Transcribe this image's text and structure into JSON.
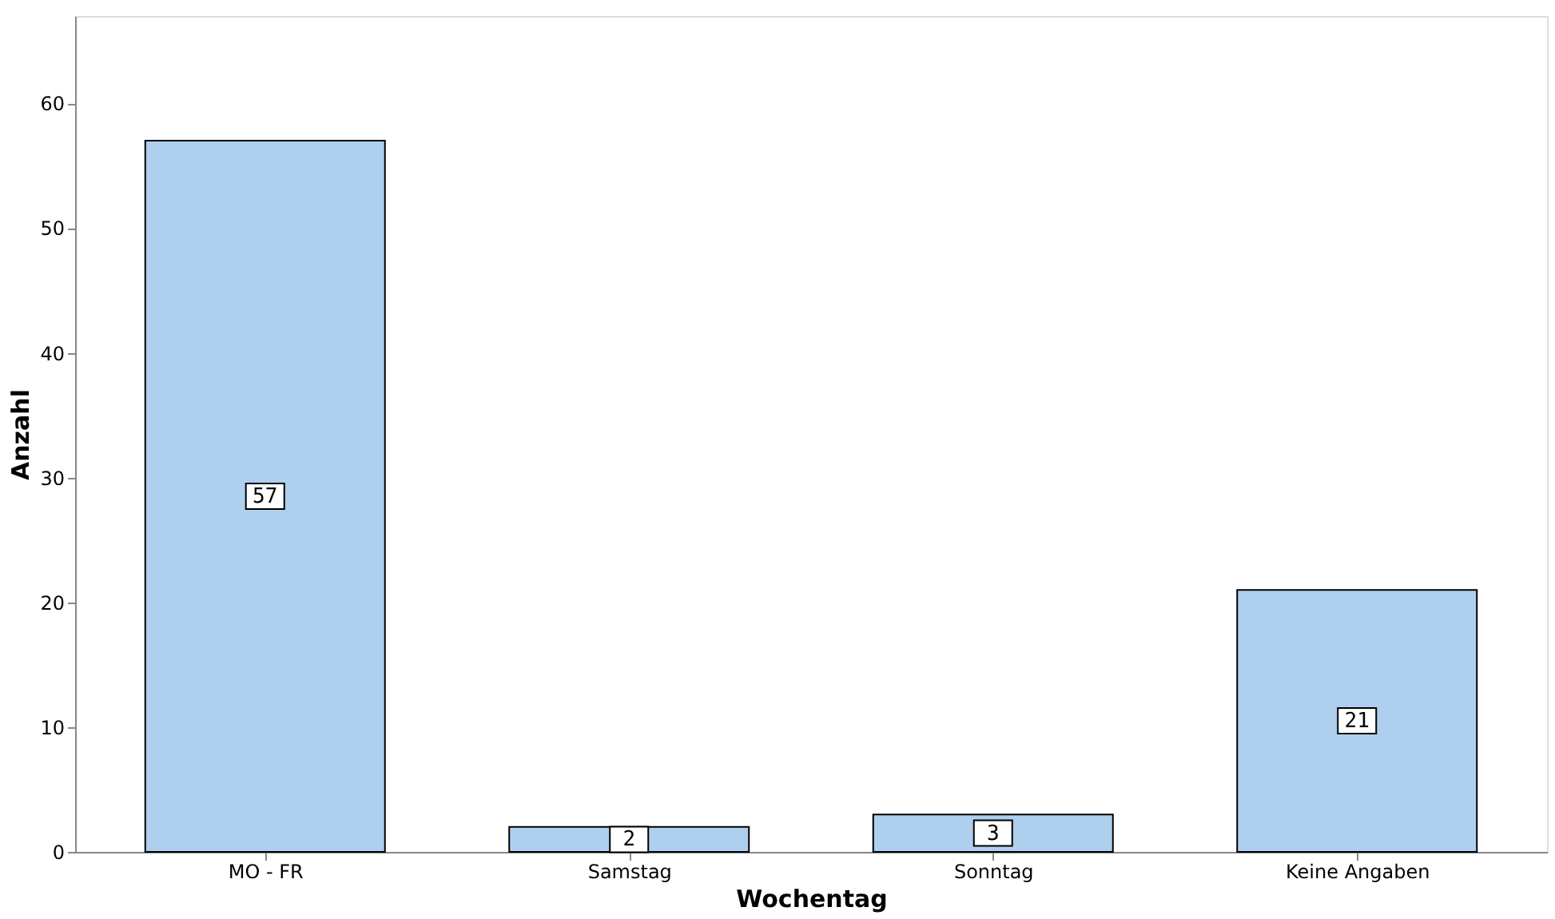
{
  "chart_data": {
    "type": "bar",
    "xlabel": "Wochentag",
    "ylabel": "Anzahl",
    "categories": [
      "MO - FR",
      "Samstag",
      "Sonntag",
      "Keine Angaben"
    ],
    "values": [
      57,
      2,
      3,
      21
    ],
    "color": "#aecfee",
    "ylim": [
      0,
      67
    ],
    "yticks": [
      0,
      10,
      20,
      30,
      40,
      50,
      60
    ],
    "grid": false,
    "data_labels": true
  }
}
